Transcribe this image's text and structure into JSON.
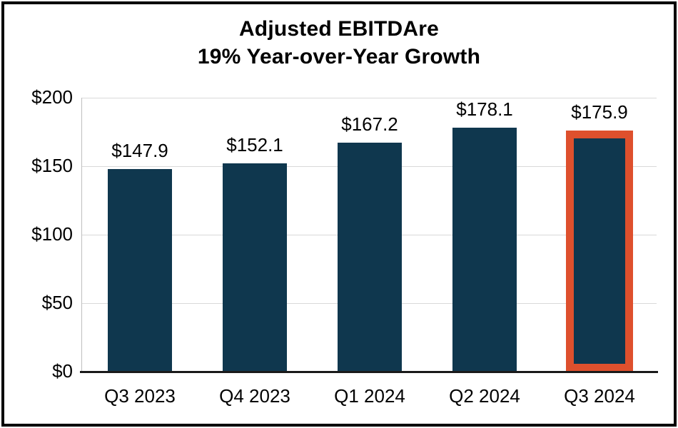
{
  "chart_data": {
    "type": "bar",
    "title_line1": "Adjusted EBITDAre",
    "title_line2": "19% Year-over-Year Growth",
    "categories": [
      "Q3 2023",
      "Q4 2023",
      "Q1 2024",
      "Q2 2024",
      "Q3 2024"
    ],
    "values": [
      147.9,
      152.1,
      167.2,
      178.1,
      175.9
    ],
    "data_labels": [
      "$147.9",
      "$152.1",
      "$167.2",
      "$178.1",
      "$175.9"
    ],
    "y_ticks": [
      {
        "label": "$200",
        "value": 200
      },
      {
        "label": "$150",
        "value": 150
      },
      {
        "label": "$100",
        "value": 100
      },
      {
        "label": "$50",
        "value": 50
      },
      {
        "label": "$0",
        "value": 0
      }
    ],
    "ylim": [
      0,
      200
    ],
    "grid": true,
    "legend": "none",
    "highlight_index": 4,
    "colors": {
      "bar": "#0f374e",
      "highlight_border": "#de502d",
      "gridline": "#d9d9d9",
      "axis_line": "#1a1a1a",
      "text": "#000000"
    }
  }
}
